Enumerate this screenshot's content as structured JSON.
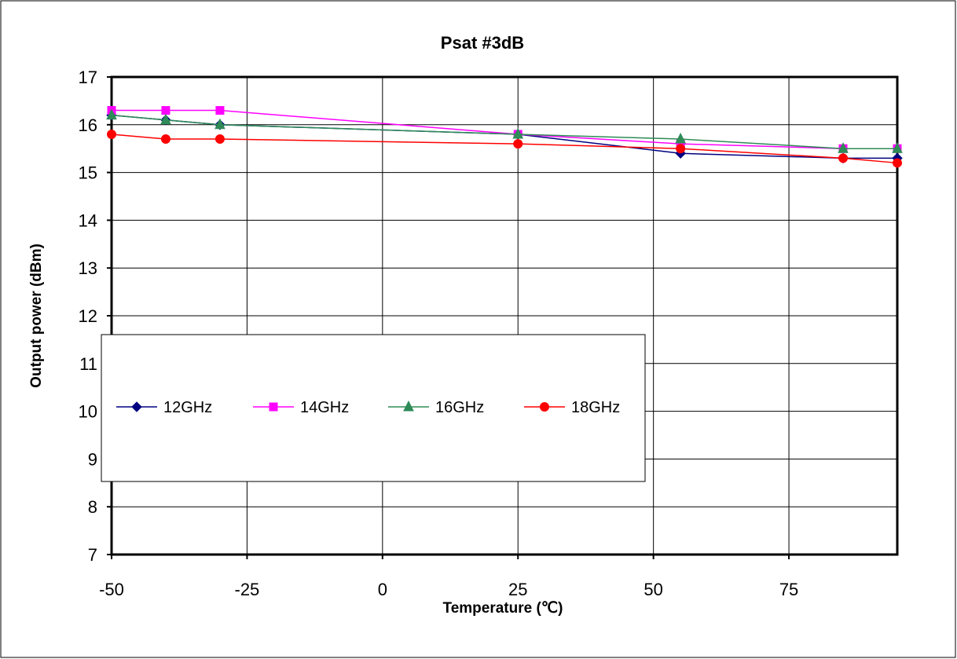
{
  "chart_data": {
    "type": "line",
    "title": "Psat #3dB",
    "xlabel": "Temperature (℃)",
    "ylabel": "Output power (dBm)",
    "xlim": [
      -50,
      95
    ],
    "ylim": [
      7,
      17
    ],
    "x_ticks": [
      -50,
      -25,
      0,
      25,
      50,
      75
    ],
    "y_ticks": [
      7,
      8,
      9,
      10,
      11,
      12,
      13,
      14,
      15,
      16,
      17
    ],
    "grid": true,
    "legend_position": "inside-left-middle",
    "series": [
      {
        "name": "12GHz",
        "color": "#000080",
        "marker": "diamond",
        "x": [
          -50,
          -40,
          -30,
          25,
          55,
          85,
          95
        ],
        "y": [
          16.2,
          16.1,
          16.0,
          15.8,
          15.4,
          15.3,
          15.3
        ]
      },
      {
        "name": "14GHz",
        "color": "#ff00ff",
        "marker": "square",
        "x": [
          -50,
          -40,
          -30,
          25,
          55,
          85,
          95
        ],
        "y": [
          16.3,
          16.3,
          16.3,
          15.8,
          15.6,
          15.5,
          15.5
        ]
      },
      {
        "name": "16GHz",
        "color": "#2e8b57",
        "marker": "triangle",
        "x": [
          -50,
          -40,
          -30,
          25,
          55,
          85,
          95
        ],
        "y": [
          16.2,
          16.1,
          16.0,
          15.8,
          15.7,
          15.5,
          15.5
        ]
      },
      {
        "name": "18GHz",
        "color": "#ff0000",
        "marker": "circle",
        "x": [
          -50,
          -40,
          -30,
          25,
          55,
          85,
          95
        ],
        "y": [
          15.8,
          15.7,
          15.7,
          15.6,
          15.5,
          15.3,
          15.2
        ]
      }
    ]
  }
}
